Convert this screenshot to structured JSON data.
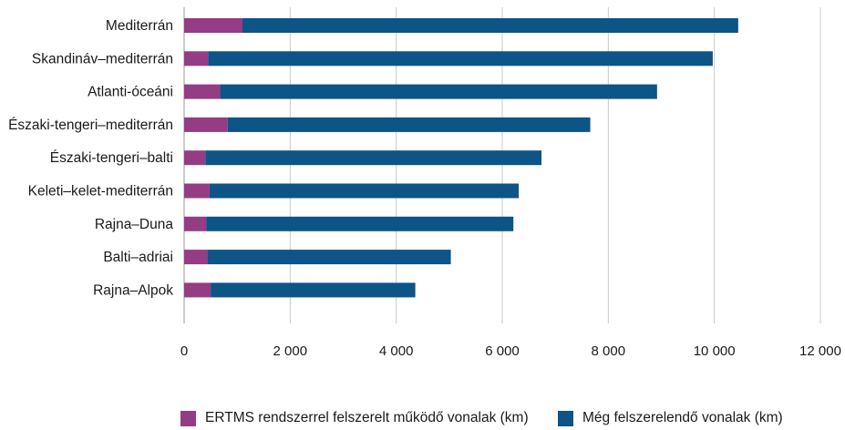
{
  "chart_data": {
    "type": "bar",
    "orientation": "horizontal",
    "stacked": true,
    "categories": [
      "Mediterrán",
      "Skandináv–mediterrán",
      "Atlanti-óceáni",
      "Északi-tengeri–mediterrán",
      "Északi-tengeri–balti",
      "Keleti–kelet-mediterrán",
      "Rajna–Duna",
      "Balti–adriai",
      "Rajna–Alpok"
    ],
    "series": [
      {
        "name": "ERTMS rendszerrel felszerelt működő vonalak (km)",
        "color": "#943C84",
        "values": [
          1100,
          450,
          680,
          820,
          400,
          480,
          420,
          440,
          500
        ]
      },
      {
        "name": "Még felszerelendő vonalak (km)",
        "color": "#0D5487",
        "values": [
          9350,
          9520,
          8240,
          6840,
          6340,
          5830,
          5790,
          4590,
          3860
        ]
      }
    ],
    "xlim": [
      0,
      12000
    ],
    "xticks": [
      0,
      2000,
      4000,
      6000,
      8000,
      10000,
      12000
    ],
    "xtick_labels": [
      "0",
      "2 000",
      "4 000",
      "6 000",
      "8 000",
      "10 000",
      "12 000"
    ],
    "xlabel": "",
    "ylabel": "",
    "grid": "vertical",
    "legend_position": "bottom"
  }
}
